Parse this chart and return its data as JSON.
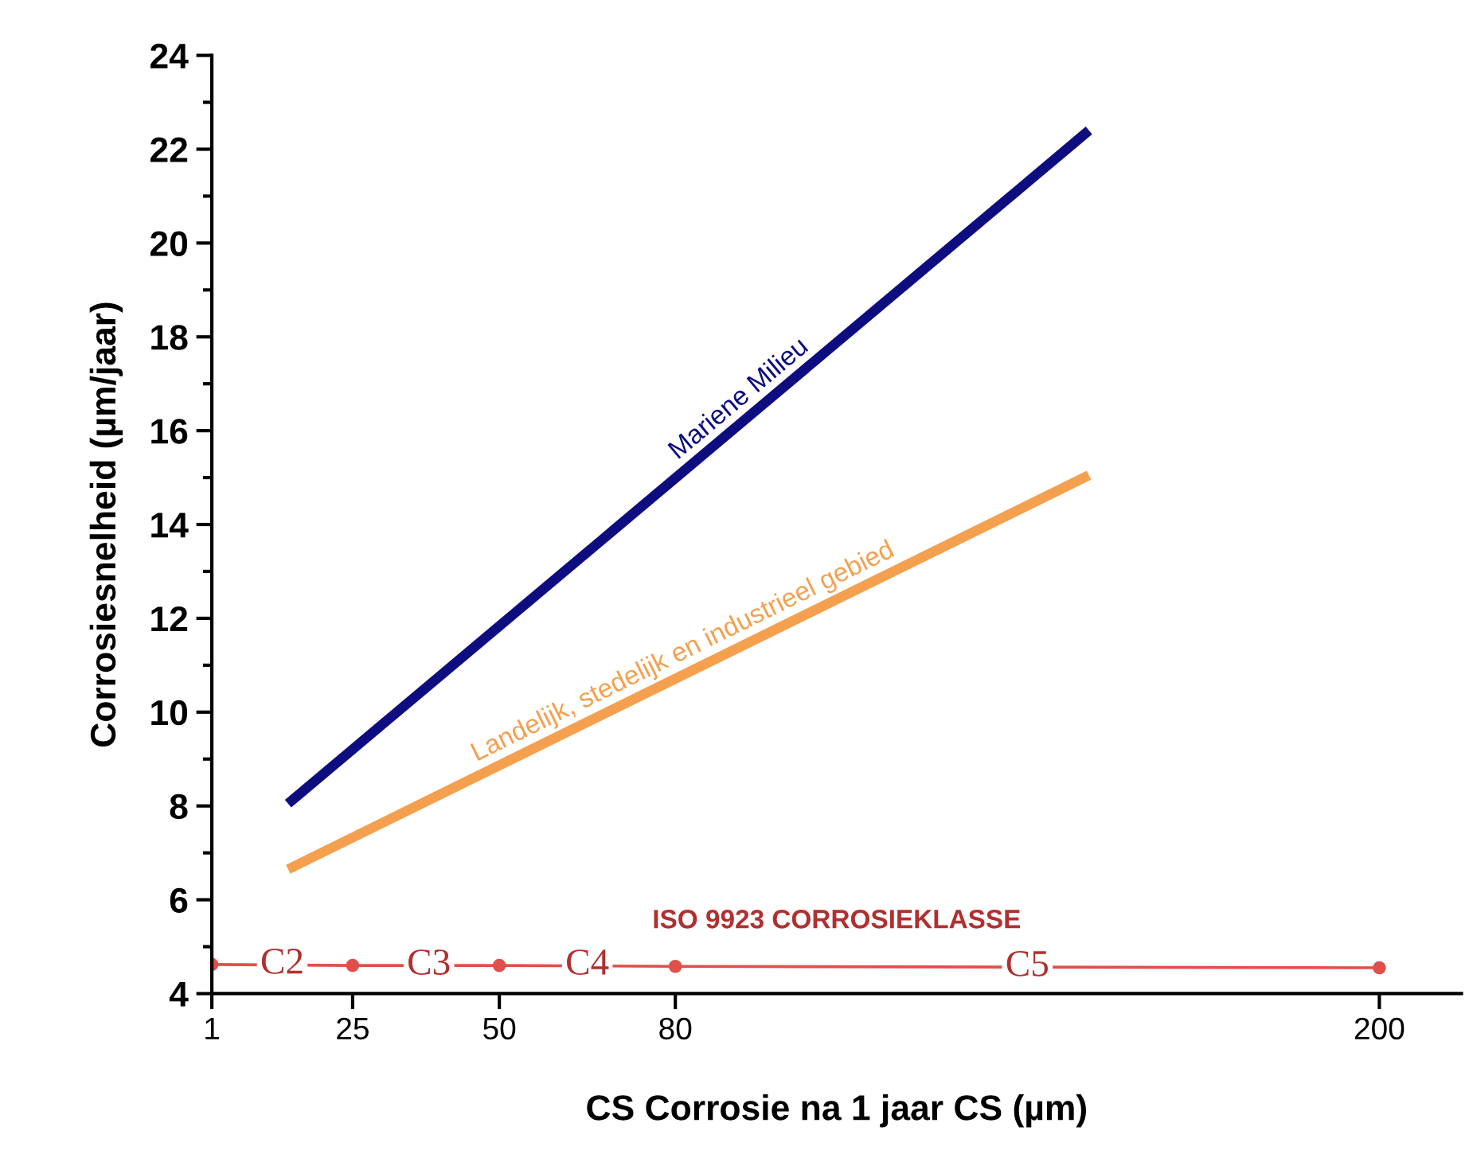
{
  "chart_data": {
    "type": "line",
    "xlabel": "CS Corrosie na 1 jaar CS (µm)",
    "ylabel": "Corrosiesnelheid (µm/jaar)",
    "series": [
      {
        "name": "Mariene Milieu",
        "color": "#0d0d80",
        "x": [
          14,
          150.5
        ],
        "values": [
          8.05,
          22.4
        ]
      },
      {
        "name": "Landelijk, stedelijk en industrieel gebied",
        "color": "#f5a04f",
        "x": [
          14,
          150.5
        ],
        "values": [
          6.65,
          15.05
        ]
      },
      {
        "color": "#e0504a",
        "x": [
          1,
          25,
          50,
          80,
          200
        ],
        "values": [
          4.62,
          4.6,
          4.6,
          4.58,
          4.55
        ],
        "marker": "circle"
      }
    ],
    "xlim": [
      1,
      214
    ],
    "ylim": [
      4,
      24
    ],
    "xticks": [
      1,
      25,
      50,
      80,
      200
    ],
    "yticks": [
      4,
      {
        "value": 5,
        "label": null
      },
      6,
      {
        "value": 7,
        "label": null
      },
      8,
      {
        "value": 9,
        "label": null
      },
      10,
      {
        "value": 11,
        "label": null
      },
      12,
      {
        "value": 13,
        "label": null
      },
      14,
      {
        "value": 15,
        "label": null
      },
      16,
      {
        "value": 17,
        "label": null
      },
      18,
      {
        "value": 19,
        "label": null
      },
      20,
      {
        "value": 21,
        "label": null
      },
      22,
      {
        "value": 23,
        "label": null
      },
      24
    ],
    "grid": false,
    "legend": false,
    "annotations": [
      "ISO 9923 CORROSIEKLASSE",
      {
        "text": "C2",
        "x": 13,
        "y": 4.62
      },
      {
        "text": "C3",
        "x": 38,
        "y": 4.6
      },
      {
        "text": "C4",
        "x": 65,
        "y": 4.6
      },
      {
        "text": "C5",
        "x": 140,
        "y": 4.57
      }
    ]
  }
}
